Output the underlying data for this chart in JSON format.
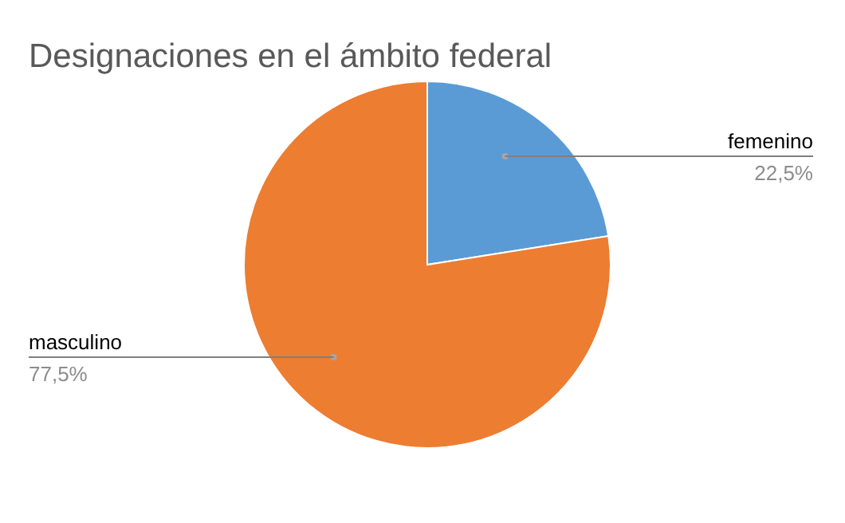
{
  "chart_data": {
    "type": "pie",
    "title": "Designaciones en el ámbito federal",
    "categories": [
      "femenino",
      "masculino"
    ],
    "values": [
      22.5,
      77.5
    ],
    "colors": [
      "#5b9bd5",
      "#ed7d31"
    ],
    "value_labels": [
      "22,5%",
      "77,5%"
    ],
    "legend": false
  }
}
